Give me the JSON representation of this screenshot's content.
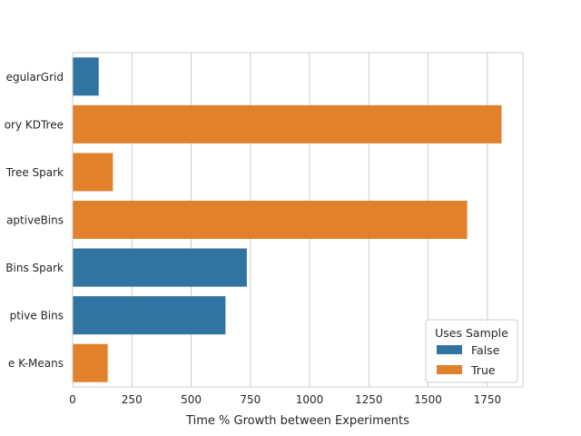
{
  "chart_data": {
    "type": "bar",
    "orientation": "horizontal",
    "title": "",
    "xlabel": "Time % Growth between Experiments",
    "ylabel": "",
    "xlim": [
      0,
      1900
    ],
    "xticks": [
      0,
      250,
      500,
      750,
      1000,
      1250,
      1500,
      1750
    ],
    "grid": true,
    "categories": [
      "RegularGrid",
      "Memory KDTree",
      "KDTree Spark",
      "AdaptiveBins",
      "AdaptiveBins Spark",
      "Adaptive Bins",
      "Sample K-Means"
    ],
    "category_labels_visible": [
      "egularGrid",
      "ory KDTree",
      "Tree Spark",
      "aptiveBins",
      "Bins Spark",
      "ptive Bins",
      "e K-Means"
    ],
    "values": [
      110,
      1810,
      170,
      1665,
      735,
      645,
      148
    ],
    "uses_sample": [
      "False",
      "True",
      "True",
      "True",
      "False",
      "False",
      "True"
    ],
    "legend": {
      "title": "Uses Sample",
      "placement": "lower right",
      "entries": [
        {
          "label": "False",
          "color": "#3274a1"
        },
        {
          "label": "True",
          "color": "#e1812c"
        }
      ]
    }
  }
}
